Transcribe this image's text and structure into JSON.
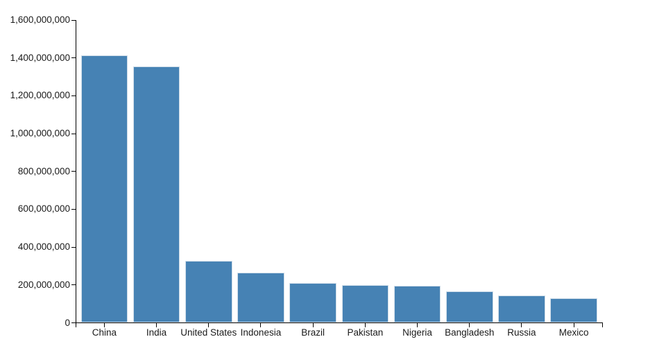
{
  "chart_data": {
    "type": "bar",
    "title": "",
    "xlabel": "",
    "ylabel": "",
    "categories": [
      "China",
      "India",
      "United States",
      "Indonesia",
      "Brazil",
      "Pakistan",
      "Nigeria",
      "Bangladesh",
      "Russia",
      "Mexico"
    ],
    "values": [
      1415045928,
      1354051854,
      326766748,
      266794980,
      210867954,
      200813818,
      195875237,
      166368149,
      143964709,
      130759074
    ],
    "ylim": [
      0,
      1600000000
    ],
    "ytick_interval": 200000000,
    "yticks": [
      {
        "value": 0,
        "label": "0"
      },
      {
        "value": 200000000,
        "label": "200,000,000"
      },
      {
        "value": 400000000,
        "label": "400,000,000"
      },
      {
        "value": 600000000,
        "label": "600,000,000"
      },
      {
        "value": 800000000,
        "label": "800,000,000"
      },
      {
        "value": 1000000000,
        "label": "1,000,000,000"
      },
      {
        "value": 1200000000,
        "label": "1,200,000,000"
      },
      {
        "value": 1400000000,
        "label": "1,400,000,000"
      },
      {
        "value": 1600000000,
        "label": "1,600,000,000"
      }
    ],
    "grid": false,
    "legend": false,
    "colors": {
      "bar_fill": "#4682b4",
      "bar_edge": "#cfdde9",
      "axis": "#000000",
      "label_text": "#1a1a1a"
    }
  }
}
